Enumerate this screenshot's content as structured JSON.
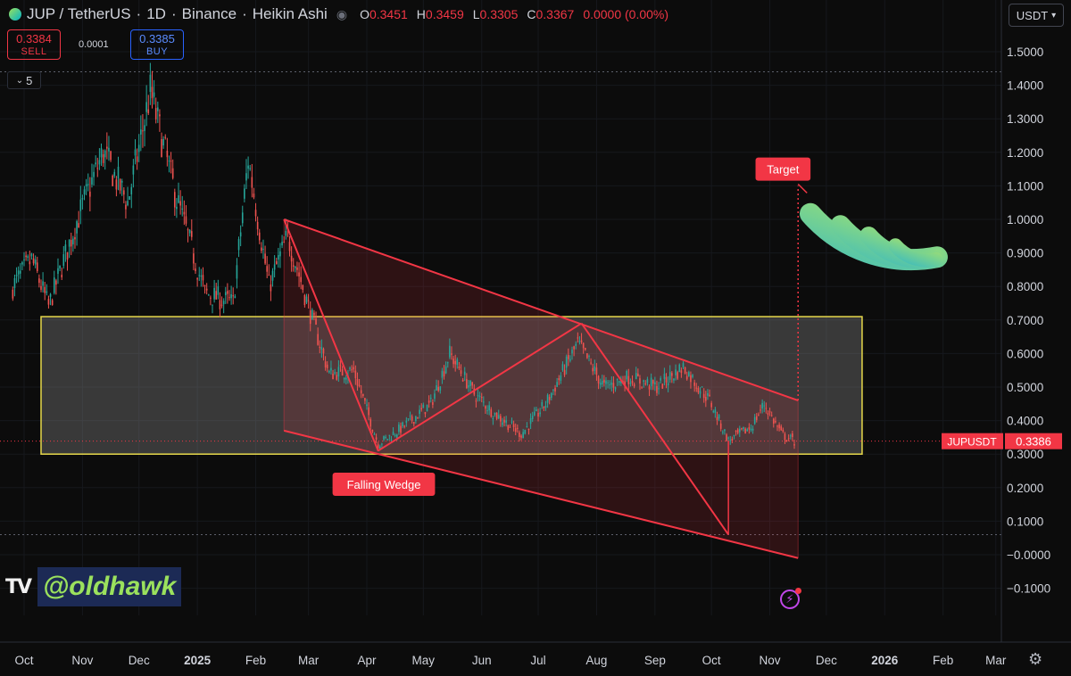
{
  "header": {
    "symbol": "JUP / TetherUS",
    "interval": "1D",
    "exchange": "Binance",
    "chart_style": "Heikin Ashi",
    "o_label": "O",
    "o_value": "0.3451",
    "h_label": "H",
    "h_value": "0.3459",
    "l_label": "L",
    "l_value": "0.3305",
    "c_label": "C",
    "c_value": "0.3367",
    "change": "0.0000 (0.00%)"
  },
  "trade": {
    "sell_price": "0.3384",
    "sell_label": "SELL",
    "spread": "0.0001",
    "buy_price": "0.3385",
    "buy_label": "BUY"
  },
  "indicators_count": "5",
  "currency_button": "USDT",
  "watermark_handle": "@oldhawk",
  "colors": {
    "bull": "#26a69a",
    "bear": "#ef5350",
    "zone": "#e6d84a",
    "pattern": "#f23645",
    "last_price": "#f23645"
  },
  "chart_data": {
    "type": "candlestick",
    "style": "Heikin Ashi",
    "y_axis_ticks": [
      "1.5000",
      "1.4000",
      "1.3000",
      "1.2000",
      "1.1000",
      "1.0000",
      "0.9000",
      "0.8000",
      "0.7000",
      "0.6000",
      "0.5000",
      "0.4000",
      "0.3000",
      "0.2000",
      "0.1000",
      "−0.0000",
      "−0.1000"
    ],
    "x_axis_ticks": [
      "Oct",
      "Nov",
      "Dec",
      "2025",
      "Feb",
      "Mar",
      "Apr",
      "May",
      "Jun",
      "Jul",
      "Aug",
      "Sep",
      "Oct",
      "Nov",
      "Dec",
      "2026",
      "Feb",
      "Mar"
    ],
    "ylim": [
      -0.13,
      1.56
    ],
    "price_path": [
      {
        "date": "2024-09-25",
        "price": 0.8
      },
      {
        "date": "2024-10-05",
        "price": 0.88
      },
      {
        "date": "2024-10-14",
        "price": 0.74
      },
      {
        "date": "2024-10-28",
        "price": 0.98
      },
      {
        "date": "2024-11-12",
        "price": 1.2
      },
      {
        "date": "2024-11-25",
        "price": 1.05
      },
      {
        "date": "2024-12-07",
        "price": 1.38
      },
      {
        "date": "2024-12-20",
        "price": 1.08
      },
      {
        "date": "2025-01-05",
        "price": 0.78
      },
      {
        "date": "2025-01-20",
        "price": 0.75
      },
      {
        "date": "2025-01-28",
        "price": 1.18
      },
      {
        "date": "2025-02-08",
        "price": 0.8
      },
      {
        "date": "2025-02-18",
        "price": 0.95
      },
      {
        "date": "2025-03-02",
        "price": 0.72
      },
      {
        "date": "2025-03-12",
        "price": 0.54
      },
      {
        "date": "2025-03-25",
        "price": 0.55
      },
      {
        "date": "2025-04-07",
        "price": 0.33
      },
      {
        "date": "2025-04-20",
        "price": 0.38
      },
      {
        "date": "2025-05-05",
        "price": 0.45
      },
      {
        "date": "2025-05-15",
        "price": 0.6
      },
      {
        "date": "2025-05-28",
        "price": 0.48
      },
      {
        "date": "2025-06-08",
        "price": 0.42
      },
      {
        "date": "2025-06-22",
        "price": 0.36
      },
      {
        "date": "2025-07-05",
        "price": 0.45
      },
      {
        "date": "2025-07-22",
        "price": 0.63
      },
      {
        "date": "2025-08-05",
        "price": 0.5
      },
      {
        "date": "2025-08-18",
        "price": 0.53
      },
      {
        "date": "2025-09-02",
        "price": 0.5
      },
      {
        "date": "2025-09-16",
        "price": 0.56
      },
      {
        "date": "2025-09-30",
        "price": 0.46
      },
      {
        "date": "2025-10-10",
        "price": 0.34
      },
      {
        "date": "2025-10-22",
        "price": 0.38
      },
      {
        "date": "2025-10-29",
        "price": 0.45
      },
      {
        "date": "2025-11-07",
        "price": 0.36
      },
      {
        "date": "2025-11-14",
        "price": 0.3367
      }
    ],
    "support_zone": {
      "from_date": "2024-10-10",
      "to_date": "2025-12-20",
      "low": 0.3,
      "high": 0.71
    },
    "wedge_upper": [
      {
        "date": "2025-02-16",
        "price": 1.0
      },
      {
        "date": "2025-11-16",
        "price": 0.46
      }
    ],
    "wedge_lower": [
      {
        "date": "2025-02-16",
        "price": 0.37
      },
      {
        "date": "2025-11-16",
        "price": -0.01
      }
    ],
    "zigzag": [
      {
        "date": "2025-02-16",
        "price": 1.0
      },
      {
        "date": "2025-04-07",
        "price": 0.31
      },
      {
        "date": "2025-07-24",
        "price": 0.69
      },
      {
        "date": "2025-10-10",
        "price": 0.06
      }
    ],
    "target_date": "2025-11-16",
    "target_price": 1.1,
    "horizontal_dotted_levels": [
      1.44,
      0.06
    ],
    "annotations": [
      {
        "text": "Falling Wedge",
        "date": "2025-04-10",
        "price": 0.21
      },
      {
        "text": "Target",
        "date": "2025-11-08",
        "price": 1.15
      }
    ],
    "last_price_label": {
      "symbol": "JUPUSDT",
      "value": "0.3386",
      "price": 0.3386
    }
  }
}
